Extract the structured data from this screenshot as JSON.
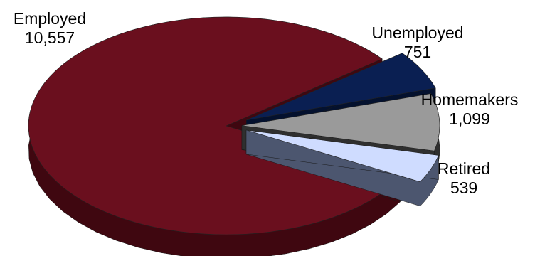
{
  "chart_data": {
    "type": "pie",
    "style": "3d-exploded",
    "categories": [
      "Employed",
      "Unemployed",
      "Homemakers",
      "Retired"
    ],
    "values": [
      10557,
      751,
      1099,
      539
    ],
    "value_labels": [
      "10,557",
      "751",
      "1,099",
      "539"
    ],
    "colors": [
      "#6a0f1e",
      "#0a1f52",
      "#9a9a9a",
      "#cfdcff"
    ],
    "side_colors": [
      "#3f0710",
      "#04112e",
      "#2f2f2f",
      "#4c566f"
    ],
    "legend": false
  }
}
